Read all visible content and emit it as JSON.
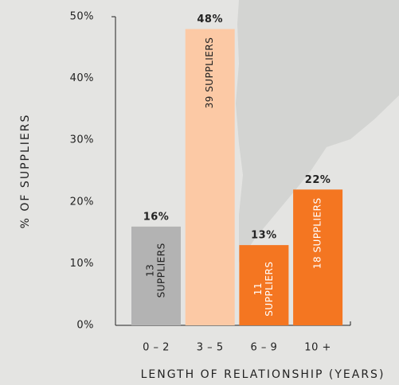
{
  "chart_data": {
    "type": "bar",
    "y_label": "% OF SUPPLIERS",
    "x_label": "LENGTH OF RELATIONSHIP (YEARS)",
    "categories": [
      "0 – 2",
      "3 – 5",
      "6 – 9",
      "10 +"
    ],
    "values": [
      16,
      48,
      13,
      22
    ],
    "value_labels": [
      "16%",
      "48%",
      "13%",
      "22%"
    ],
    "inner_labels": [
      [
        "13",
        "SUPPLIERS"
      ],
      [
        "39 SUPPLIERS"
      ],
      [
        "11",
        "SUPPLIERS"
      ],
      [
        "18 SUPPLIERS"
      ]
    ],
    "colors": [
      "#b3b3b3",
      "#fcc9a5",
      "#f47621",
      "#f47621"
    ],
    "ylim": [
      0,
      50
    ],
    "yticks": [
      {
        "value": 0,
        "label": "0%"
      },
      {
        "value": 10,
        "label": "10%"
      },
      {
        "value": 20,
        "label": "20%"
      },
      {
        "value": 30,
        "label": "30%"
      },
      {
        "value": 40,
        "label": "40%"
      },
      {
        "value": 50,
        "label": "50%"
      }
    ],
    "grid": false
  }
}
